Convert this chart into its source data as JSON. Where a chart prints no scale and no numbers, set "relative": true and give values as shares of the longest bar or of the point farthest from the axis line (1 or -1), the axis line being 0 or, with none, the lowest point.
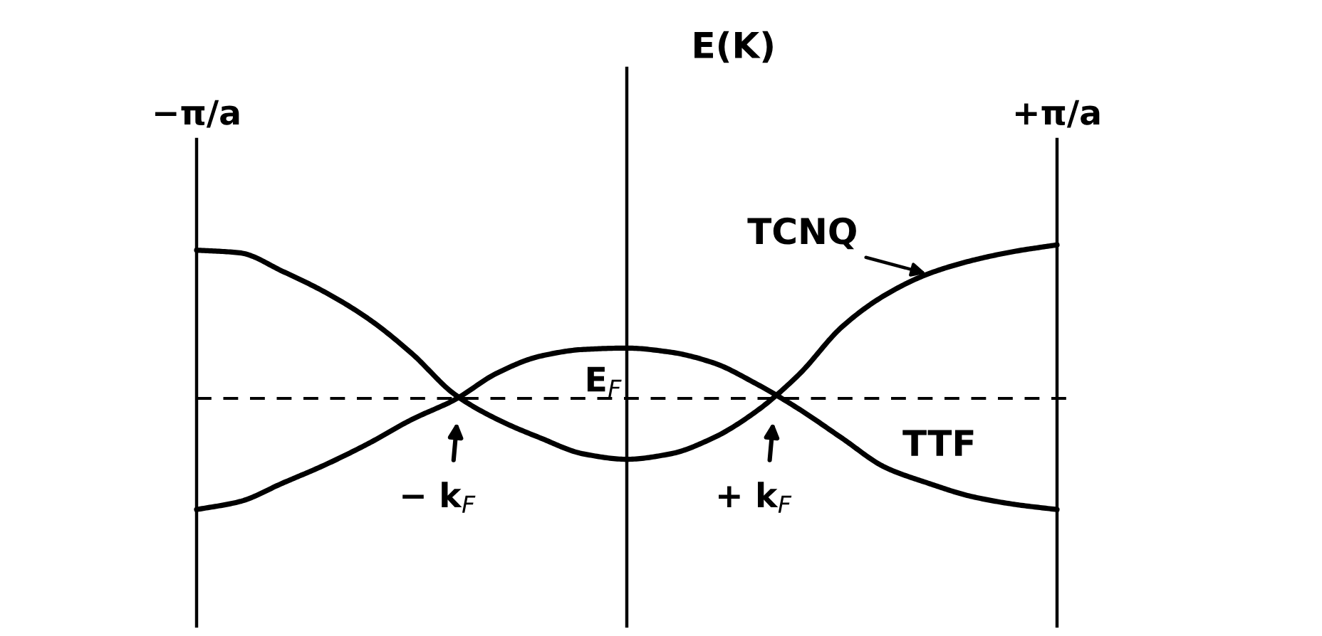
{
  "chart_data": {
    "type": "line",
    "relative": true,
    "ylabel": "E(K)",
    "tick_labels": "x",
    "categories": [
      "−π/a",
      null,
      null,
      null,
      null,
      null,
      null,
      null,
      null,
      null,
      null,
      null,
      null,
      null,
      null,
      null,
      null,
      null,
      null,
      null,
      "+π/a"
    ],
    "series": [
      {
        "name": "TCNQ",
        "color": "#000000",
        "values": [
          0.98,
          0.97,
          0.9,
          0.82,
          0.72,
          0.59,
          0.435,
          0.34,
          0.27,
          0.21,
          0.19,
          0.21,
          0.27,
          0.37,
          0.51,
          0.69,
          0.81,
          0.89,
          0.94,
          0.975,
          1
        ]
      },
      {
        "name": "TTF",
        "color": "#000000",
        "values": [
          0,
          0.03,
          0.1,
          0.17,
          0.25,
          0.34,
          0.415,
          0.517,
          0.58,
          0.605,
          0.61,
          0.595,
          0.555,
          0.476,
          0.38,
          0.27,
          0.16,
          0.1,
          0.05,
          0.02,
          0
        ]
      }
    ],
    "ref_lines": [
      {
        "axis": "y",
        "value": 0.42,
        "label": "E$_{F}$",
        "line_style": "dashed"
      }
    ],
    "annotations": [
      {
        "text": "− k$_{F}$",
        "y": 0.42
      },
      {
        "text": "+ k$_{F}$",
        "y": 0.42
      }
    ]
  }
}
